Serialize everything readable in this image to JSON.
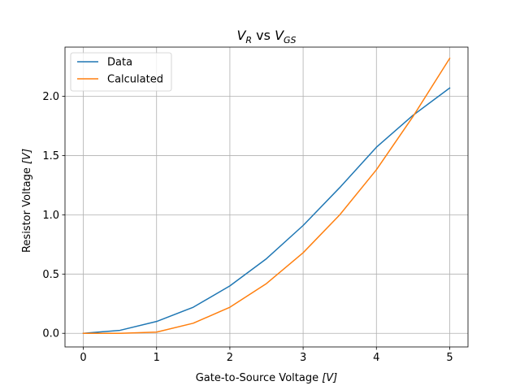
{
  "chart_data": {
    "type": "line",
    "title": {
      "base1": "V",
      "sub1": "R",
      "mid": " vs ",
      "base2": "V",
      "sub2": "GS"
    },
    "xlabel": {
      "text": "Gate-to-Source Voltage ",
      "unit": "[V]"
    },
    "ylabel": {
      "text": "Resistor Voltage ",
      "unit": "[V]"
    },
    "xlim": [
      -0.25,
      5.25
    ],
    "ylim": [
      -0.115,
      2.415
    ],
    "xticks": [
      {
        "value": 0,
        "label": "0"
      },
      {
        "value": 1,
        "label": "1"
      },
      {
        "value": 2,
        "label": "2"
      },
      {
        "value": 3,
        "label": "3"
      },
      {
        "value": 4,
        "label": "4"
      },
      {
        "value": 5,
        "label": "5"
      }
    ],
    "yticks": [
      {
        "value": 0.0,
        "label": "0.0"
      },
      {
        "value": 0.5,
        "label": "0.5"
      },
      {
        "value": 1.0,
        "label": "1.0"
      },
      {
        "value": 1.5,
        "label": "1.5"
      },
      {
        "value": 2.0,
        "label": "2.0"
      }
    ],
    "grid": true,
    "legend_position": "top-left",
    "x": [
      0,
      0.5,
      1,
      1.5,
      2,
      2.5,
      3,
      3.5,
      4,
      4.5,
      5
    ],
    "series": [
      {
        "name": "Data",
        "color": "#1f77b4",
        "values": [
          0.0,
          0.025,
          0.1,
          0.22,
          0.4,
          0.63,
          0.91,
          1.23,
          1.57,
          1.84,
          2.07
        ]
      },
      {
        "name": "Calculated",
        "color": "#ff7f0e",
        "values": [
          0.0,
          0.0,
          0.01,
          0.085,
          0.22,
          0.42,
          0.68,
          1.0,
          1.38,
          1.83,
          2.32
        ]
      }
    ]
  }
}
